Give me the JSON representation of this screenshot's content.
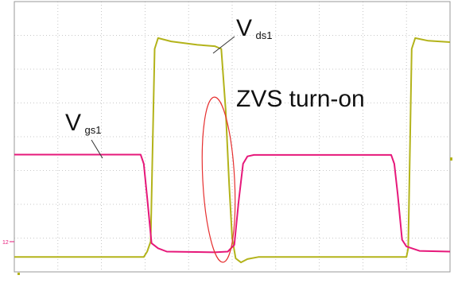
{
  "chart_data": {
    "type": "line",
    "title": "",
    "xlabel": "",
    "ylabel": "",
    "grid": true,
    "grid_divisions": {
      "x": 10,
      "y": 8
    },
    "xlim": [
      0,
      10
    ],
    "ylim": [
      0,
      8
    ],
    "series": [
      {
        "name": "Vds1",
        "color": "#b3b31a",
        "label_main": "V",
        "label_sub": "ds1",
        "points": [
          [
            0,
            0.44
          ],
          [
            2.97,
            0.44
          ],
          [
            3.05,
            0.6
          ],
          [
            3.13,
            0.9
          ],
          [
            3.22,
            6.6
          ],
          [
            3.3,
            6.92
          ],
          [
            3.6,
            6.82
          ],
          [
            4.2,
            6.72
          ],
          [
            4.6,
            6.68
          ],
          [
            4.75,
            6.6
          ],
          [
            4.85,
            4.8
          ],
          [
            4.93,
            2.6
          ],
          [
            5.0,
            1.0
          ],
          [
            5.08,
            0.4
          ],
          [
            5.2,
            0.28
          ],
          [
            5.35,
            0.38
          ],
          [
            5.6,
            0.44
          ],
          [
            9.0,
            0.44
          ],
          [
            9.04,
            0.7
          ],
          [
            9.12,
            6.6
          ],
          [
            9.2,
            6.92
          ],
          [
            9.5,
            6.84
          ],
          [
            10,
            6.8
          ]
        ]
      },
      {
        "name": "Vgs1",
        "color": "#e6187a",
        "label_main": "V",
        "label_sub": "gs1",
        "points": [
          [
            0,
            3.47
          ],
          [
            2.9,
            3.47
          ],
          [
            2.97,
            3.2
          ],
          [
            3.05,
            2.2
          ],
          [
            3.15,
            0.85
          ],
          [
            3.3,
            0.7
          ],
          [
            3.5,
            0.6
          ],
          [
            4.6,
            0.58
          ],
          [
            4.9,
            0.6
          ],
          [
            5.05,
            0.8
          ],
          [
            5.15,
            2.1
          ],
          [
            5.25,
            3.2
          ],
          [
            5.35,
            3.42
          ],
          [
            5.5,
            3.46
          ],
          [
            8.65,
            3.46
          ],
          [
            8.72,
            3.2
          ],
          [
            8.8,
            2.3
          ],
          [
            8.9,
            0.95
          ],
          [
            9.0,
            0.75
          ],
          [
            9.3,
            0.62
          ],
          [
            10,
            0.6
          ]
        ]
      }
    ],
    "annotations": [
      {
        "text": "ZVS turn-on",
        "type": "ellipse-callout"
      }
    ],
    "ground_marker": "12"
  }
}
